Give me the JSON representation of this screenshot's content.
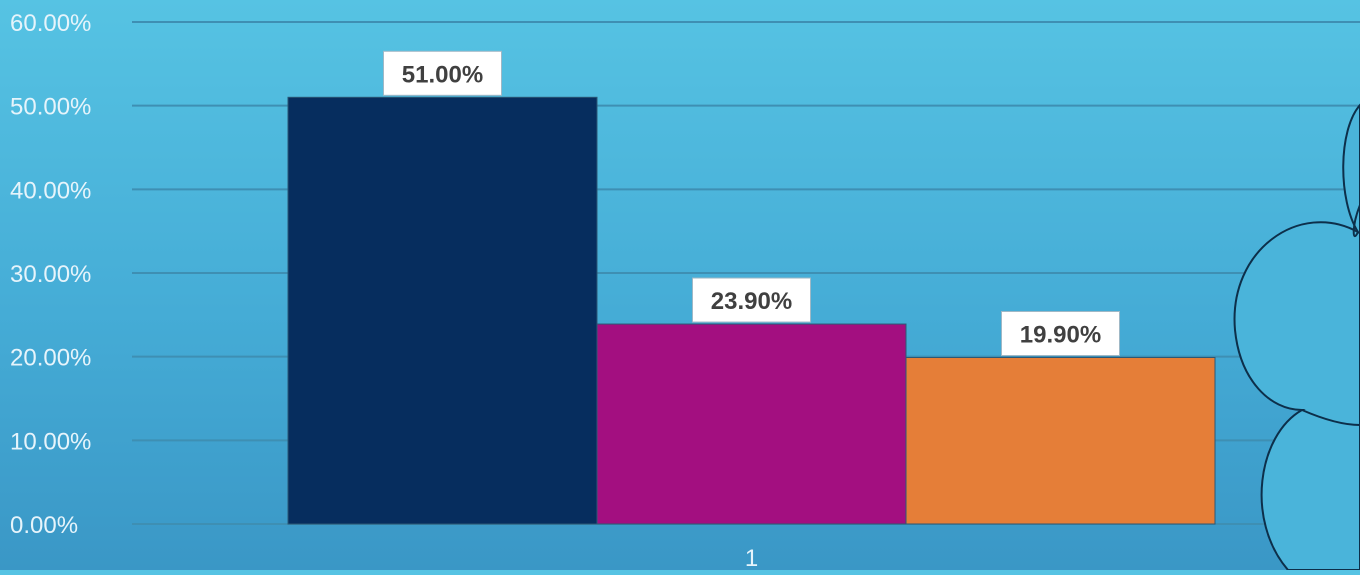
{
  "chart_data": {
    "type": "bar",
    "categories": [
      "1"
    ],
    "series": [
      {
        "values": [
          51.0
        ],
        "color": "#062d5e",
        "label": "51.00%"
      },
      {
        "values": [
          23.9
        ],
        "color": "#a30f80",
        "label": "23.90%"
      },
      {
        "values": [
          19.9
        ],
        "color": "#e57e38",
        "label": "19.90%"
      }
    ],
    "ylim": [
      0,
      60
    ],
    "yticks": [
      "0.00%",
      "10.00%",
      "20.00%",
      "30.00%",
      "40.00%",
      "50.00%",
      "60.00%"
    ],
    "grid": true,
    "legend": "none",
    "colors": {
      "background": "#4db8de",
      "grid": "#3e8fb3",
      "axis_text": "#e6f4fb",
      "label_box": "#ffffff",
      "label_text": "#404040",
      "cloud_stroke": "#0d2f4a"
    }
  }
}
